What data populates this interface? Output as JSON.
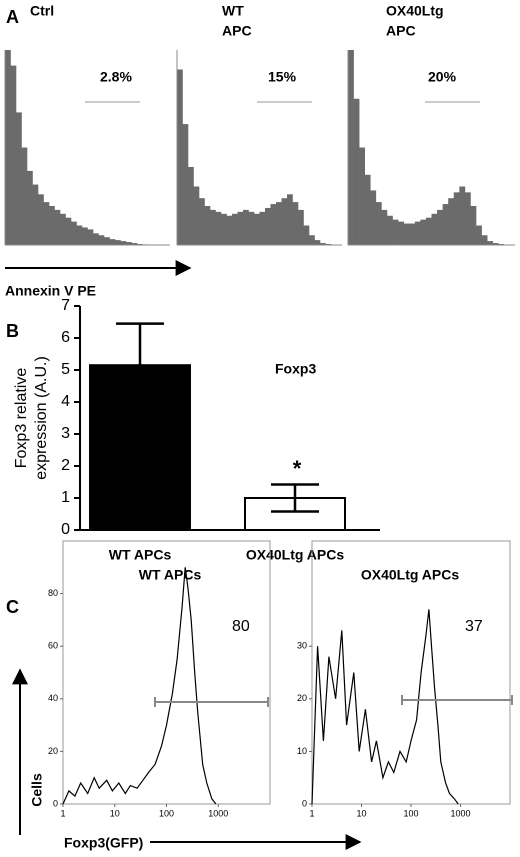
{
  "chart_data": [
    {
      "type": "histogram",
      "panel": "A",
      "title": [
        "Ctrl"
      ],
      "annotation": "2.8%",
      "xlabel": "Annexin V PE",
      "bins": [
        0,
        1,
        2,
        3,
        4,
        5,
        6,
        7,
        8,
        9,
        10,
        11,
        12,
        13,
        14,
        15,
        16,
        17,
        18,
        19,
        20,
        21,
        22,
        23,
        24,
        25,
        26,
        27,
        28,
        29,
        30
      ],
      "values": [
        100,
        92,
        68,
        50,
        38,
        31,
        26,
        22,
        20,
        18,
        16,
        14,
        12,
        10,
        9,
        8,
        6,
        5,
        4,
        3,
        2.5,
        2,
        1.5,
        1,
        0.5,
        0.3,
        0.2,
        0,
        0,
        0
      ],
      "ylim": [
        0,
        100
      ],
      "color": "#6b6b6b"
    },
    {
      "type": "histogram",
      "title": [
        "WT",
        "APC"
      ],
      "annotation": "15%",
      "bins": [
        0,
        1,
        2,
        3,
        4,
        5,
        6,
        7,
        8,
        9,
        10,
        11,
        12,
        13,
        14,
        15,
        16,
        17,
        18,
        19,
        20,
        21,
        22,
        23,
        24,
        25,
        26,
        27,
        28,
        29,
        30
      ],
      "values": [
        90,
        62,
        40,
        30,
        24,
        20,
        18,
        17,
        16,
        15,
        16,
        17,
        18,
        17,
        16,
        17,
        19,
        21,
        22,
        24,
        26,
        22,
        18,
        10,
        5,
        2.5,
        1,
        0.5,
        0,
        0
      ],
      "ylim": [
        0,
        100
      ],
      "color": "#6b6b6b"
    },
    {
      "type": "histogram",
      "title": [
        "OX40Ltg",
        "APC"
      ],
      "annotation": "20%",
      "bins": [
        0,
        1,
        2,
        3,
        4,
        5,
        6,
        7,
        8,
        9,
        10,
        11,
        12,
        13,
        14,
        15,
        16,
        17,
        18,
        19,
        20,
        21,
        22,
        23,
        24,
        25,
        26,
        27,
        28,
        29,
        30
      ],
      "values": [
        100,
        75,
        50,
        36,
        28,
        22,
        18,
        15,
        13,
        12,
        11,
        11,
        12,
        13,
        14,
        16,
        18,
        21,
        24,
        27,
        30,
        27,
        20,
        10,
        5,
        2,
        1,
        0.5,
        0,
        0
      ],
      "ylim": [
        0,
        100
      ],
      "color": "#6b6b6b"
    },
    {
      "type": "bar",
      "panel": "B",
      "categories": [
        "WT APCs",
        "OX40Ltg APCs"
      ],
      "values": [
        5.15,
        1.0
      ],
      "errors": [
        1.3,
        0.42
      ],
      "colors": [
        "#000000",
        "#ffffff"
      ],
      "ylabel": [
        "Foxp3 relative",
        "expression (A.U.)"
      ],
      "annotations": [
        "Foxp3",
        "*"
      ],
      "ylim": [
        0,
        7
      ],
      "yticks": [
        0,
        1,
        2,
        3,
        4,
        5,
        6,
        7
      ]
    },
    {
      "type": "line",
      "panel": "C",
      "title": "WT APCs",
      "annotation": "80",
      "log_x": true,
      "ylabel": "Cells",
      "xlabel": "Foxp3(GFP)",
      "x": [
        1,
        1.3,
        1.7,
        2.2,
        3,
        4,
        5,
        7,
        9,
        12,
        16,
        20,
        27,
        35,
        45,
        60,
        80,
        100,
        130,
        160,
        200,
        230,
        260,
        300,
        350,
        400,
        500,
        600,
        750,
        900
      ],
      "values": [
        0,
        5,
        3,
        8,
        4,
        10,
        6,
        9,
        5,
        8,
        4,
        7,
        6,
        9,
        12,
        15,
        22,
        30,
        42,
        55,
        75,
        90,
        82,
        70,
        50,
        35,
        15,
        8,
        2,
        0
      ],
      "xlim": [
        1,
        10000
      ],
      "xticks": [
        1,
        10,
        100,
        1000
      ],
      "ylim": [
        0,
        100
      ],
      "yticks": [
        0,
        20,
        40,
        60,
        80
      ],
      "color": "#000000"
    },
    {
      "type": "line",
      "title": "OX40Ltg APCs",
      "annotation": "37",
      "log_x": true,
      "x": [
        1,
        1.3,
        1.7,
        2.2,
        3,
        4,
        5,
        7,
        9,
        12,
        16,
        20,
        27,
        35,
        45,
        60,
        80,
        100,
        130,
        160,
        200,
        230,
        260,
        300,
        350,
        400,
        500,
        600,
        750,
        900
      ],
      "values": [
        0,
        30,
        12,
        28,
        20,
        33,
        15,
        25,
        10,
        18,
        8,
        12,
        5,
        8,
        6,
        10,
        8,
        12,
        16,
        25,
        32,
        37,
        30,
        22,
        15,
        8,
        4,
        2,
        1,
        0
      ],
      "xlim": [
        1,
        10000
      ],
      "xticks": [
        1,
        10,
        100,
        1000
      ],
      "ylim": [
        0,
        50
      ],
      "yticks": [
        0,
        10,
        20,
        30
      ],
      "color": "#000000"
    }
  ]
}
